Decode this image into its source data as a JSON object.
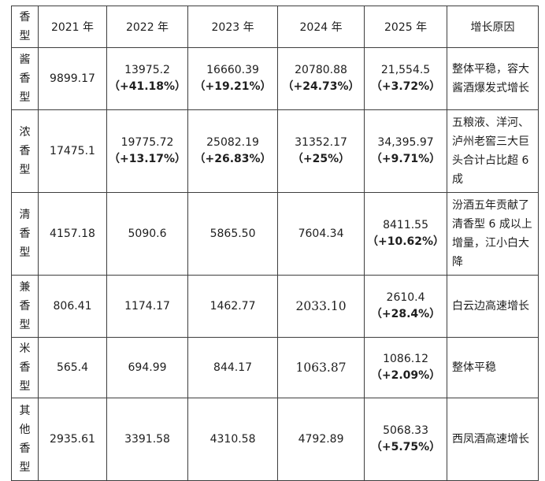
{
  "table": {
    "headers": [
      "香型",
      "2021 年",
      "2022 年",
      "2023 年",
      "2024 年",
      "2025 年",
      "增长原因"
    ],
    "rows": [
      {
        "type": "酱香型",
        "cells": [
          {
            "value": "9899.17",
            "pct": ""
          },
          {
            "value": "13975.2",
            "pct": "（+41.18%）"
          },
          {
            "value": "16660.39",
            "pct": "（+19.21%）"
          },
          {
            "value": "20780.88",
            "pct": "（+24.73%）"
          },
          {
            "value": "21,554.5",
            "pct": "（+3.72%）"
          }
        ],
        "reason": "整体平稳，容大酱酒爆发式增长"
      },
      {
        "type": "浓香型",
        "cells": [
          {
            "value": "17475.1",
            "pct": ""
          },
          {
            "value": "19775.72",
            "pct": "（+13.17%）"
          },
          {
            "value": "25082.19",
            "pct": "（+26.83%）"
          },
          {
            "value": "31352.17",
            "pct": "（+25%）"
          },
          {
            "value": "34,395.97",
            "pct": "（+9.71%）"
          }
        ],
        "reason": "五粮液、洋河、泸州老窖三大巨头合计占比超 6 成"
      },
      {
        "type": "清香型",
        "cells": [
          {
            "value": "4157.18",
            "pct": ""
          },
          {
            "value": "5090.6",
            "pct": ""
          },
          {
            "value": "5865.50",
            "pct": ""
          },
          {
            "value": "7604.34",
            "pct": ""
          },
          {
            "value": "8411.55",
            "pct": "（+10.62%）"
          }
        ],
        "reason": "汾酒五年贡献了清香型 6 成以上增量，江小白大降"
      },
      {
        "type": "兼香型",
        "cells": [
          {
            "value": "806.41",
            "pct": ""
          },
          {
            "value": "1174.17",
            "pct": ""
          },
          {
            "value": "1462.77",
            "pct": ""
          },
          {
            "value": "2033.10",
            "pct": ""
          },
          {
            "value": "2610.4",
            "pct": "（+28.4%）"
          }
        ],
        "reason": "白云边高速增长"
      },
      {
        "type": "米香型",
        "cells": [
          {
            "value": "565.4",
            "pct": ""
          },
          {
            "value": "694.99",
            "pct": ""
          },
          {
            "value": "844.17",
            "pct": ""
          },
          {
            "value": "1063.87",
            "pct": ""
          },
          {
            "value": "1086.12",
            "pct": "（+2.09%）"
          }
        ],
        "reason": "整体平稳"
      },
      {
        "type": "其他香型",
        "cells": [
          {
            "value": "2935.61",
            "pct": ""
          },
          {
            "value": "3391.58",
            "pct": ""
          },
          {
            "value": "4310.58",
            "pct": ""
          },
          {
            "value": "4792.89",
            "pct": ""
          },
          {
            "value": "5068.33",
            "pct": "（+5.75%）"
          }
        ],
        "reason": "西凤酒高速增长"
      }
    ]
  }
}
